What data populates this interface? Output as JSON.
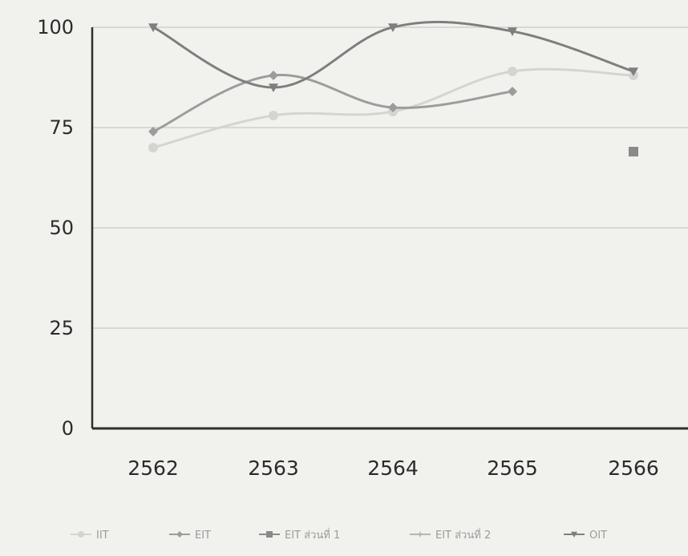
{
  "chart_data": {
    "type": "line",
    "title": "",
    "xlabel": "",
    "ylabel": "",
    "categories": [
      "2562",
      "2563",
      "2564",
      "2565",
      "2566"
    ],
    "ylim": [
      0,
      100
    ],
    "yticks": [
      "0",
      "25",
      "50",
      "75",
      "100"
    ],
    "grid": true,
    "legend_position": "bottom",
    "series": [
      {
        "name": "IIT",
        "values": [
          70,
          78,
          79,
          89,
          88
        ],
        "color": "#d4d4d0",
        "marker": "circle"
      },
      {
        "name": "EIT",
        "values": [
          74,
          88,
          80,
          84,
          null
        ],
        "color": "#9c9c9c",
        "marker": "diamond"
      },
      {
        "name": "EIT ส่วนที่ 1",
        "values": [
          null,
          null,
          null,
          null,
          69
        ],
        "color": "#8a8a8a",
        "marker": "square"
      },
      {
        "name": "EIT ส่วนที่ 2",
        "values": [
          null,
          null,
          null,
          null,
          null
        ],
        "color": "#b5b5b5",
        "marker": "star"
      },
      {
        "name": "OIT",
        "values": [
          100,
          85,
          100,
          99,
          89
        ],
        "color": "#7e7e7e",
        "marker": "triangle"
      }
    ]
  }
}
